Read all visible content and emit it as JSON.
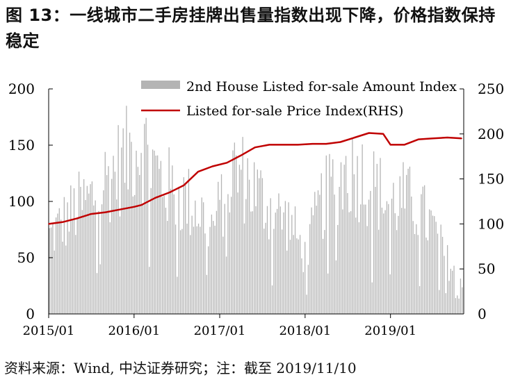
{
  "title": "图 13：一线城市二手房挂牌出售量指数出现下降，价格指数保持稳定",
  "source": "资料来源：Wind, 中达证券研究；注：截至 2019/11/10",
  "chart_data": {
    "type": "bar+line",
    "title": "图 13：一线城市二手房挂牌出售量指数出现下降，价格指数保持稳定",
    "xlabel": "",
    "ylabel": "",
    "x_ticks": [
      "2015/01",
      "2016/01",
      "2017/01",
      "2018/01",
      "2019/01"
    ],
    "x_range": [
      "2015/01/01",
      "2019/11/10"
    ],
    "left_axis": {
      "range": [
        0,
        200
      ],
      "ticks": [
        0,
        50,
        100,
        150,
        200
      ]
    },
    "right_axis": {
      "range": [
        0,
        250
      ],
      "ticks": [
        0,
        50,
        100,
        150,
        200,
        250
      ]
    },
    "grid": false,
    "legend_position": "top-right",
    "colors": {
      "bars": "#b4b4b4",
      "line": "#c00000",
      "axis": "#000000"
    },
    "series": [
      {
        "name": "2nd House Listed for-sale Amount Index",
        "type": "bar",
        "axis": "left",
        "frequency": "weekly",
        "envelope_x": [
          "2015/01",
          "2015/03",
          "2015/05",
          "2015/07",
          "2015/09",
          "2015/11",
          "2016/01",
          "2016/02",
          "2016/04",
          "2016/06",
          "2016/08",
          "2016/10",
          "2016/12",
          "2017/02",
          "2017/03",
          "2017/05",
          "2017/07",
          "2017/09",
          "2017/11",
          "2018/01",
          "2018/03",
          "2018/05",
          "2018/07",
          "2018/09",
          "2018/11",
          "2019/01",
          "2019/03",
          "2019/05",
          "2019/07",
          "2019/09",
          "2019/11"
        ],
        "envelope_values": [
          80,
          95,
          110,
          120,
          140,
          155,
          175,
          180,
          150,
          130,
          120,
          110,
          90,
          130,
          150,
          140,
          120,
          105,
          95,
          60,
          110,
          135,
          150,
          145,
          130,
          115,
          120,
          110,
          90,
          55,
          40
        ],
        "peak": 185
      },
      {
        "name": "Listed for-sale Price Index(RHS)",
        "type": "line",
        "axis": "right",
        "x": [
          "2015/01",
          "2015/03",
          "2015/05",
          "2015/07",
          "2015/09",
          "2015/11",
          "2016/01",
          "2016/02",
          "2016/04",
          "2016/06",
          "2016/08",
          "2016/10",
          "2016/12",
          "2017/02",
          "2017/04",
          "2017/06",
          "2017/08",
          "2017/10",
          "2017/12",
          "2018/02",
          "2018/04",
          "2018/06",
          "2018/08",
          "2018/10",
          "2018/12",
          "2019/01",
          "2019/03",
          "2019/05",
          "2019/07",
          "2019/09",
          "2019/11"
        ],
        "values": [
          100,
          102,
          106,
          111,
          113,
          116,
          119,
          121,
          129,
          135,
          143,
          158,
          164,
          168,
          176,
          185,
          188,
          188,
          188,
          189,
          189,
          191,
          196,
          201,
          200,
          188,
          188,
          194,
          195,
          196,
          195
        ]
      }
    ]
  }
}
